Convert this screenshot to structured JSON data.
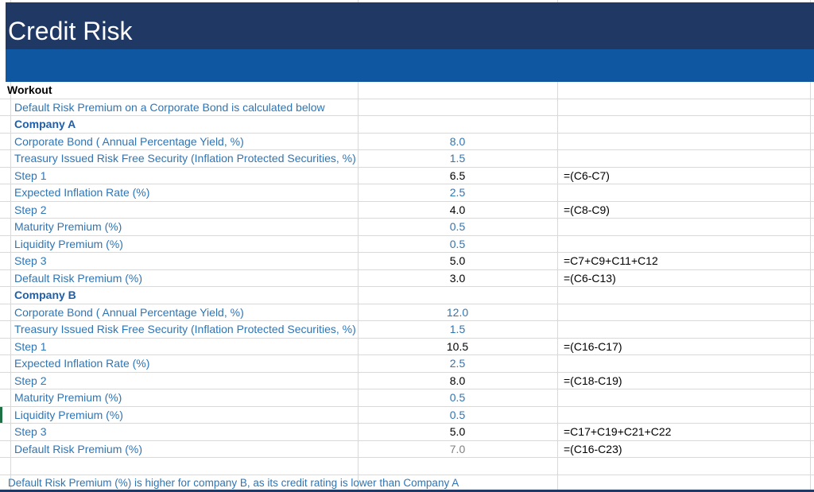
{
  "title": "Credit Risk",
  "colors": {
    "header_band": "#1F3864",
    "sub_band": "#0F57A1",
    "title_text": "#FFFFFF",
    "label_text": "#2E75B6",
    "section_text": "#1F5FA9",
    "calc_text": "#000000",
    "muted_value_text": "#808080",
    "gridline": "#D9D9D9",
    "row_marker_green": "#1E7145",
    "bottom_border": "#1F3864"
  },
  "sheet": {
    "rows": [
      {
        "label": "Workout",
        "style": "workout",
        "value": "",
        "formula": ""
      },
      {
        "label": "Default Risk Premium on a Corporate Bond is calculated below",
        "style": "label",
        "value": "",
        "formula": ""
      },
      {
        "label": "Company A",
        "style": "section",
        "value": "",
        "formula": ""
      },
      {
        "label": "Corporate Bond ( Annual Percentage Yield, %)",
        "style": "label",
        "value": "8.0",
        "value_style": "input",
        "formula": ""
      },
      {
        "label": "Treasury Issued Risk Free Security (Inflation Protected Securities, %)",
        "style": "label",
        "value": "1.5",
        "value_style": "input",
        "formula": ""
      },
      {
        "label": "Step 1",
        "style": "label",
        "value": "6.5",
        "value_style": "calc",
        "formula": "=(C6-C7)"
      },
      {
        "label": "Expected Inflation Rate (%)",
        "style": "label",
        "value": "2.5",
        "value_style": "input",
        "formula": ""
      },
      {
        "label": "Step 2",
        "style": "label",
        "value": "4.0",
        "value_style": "calc",
        "formula": "=(C8-C9)"
      },
      {
        "label": "Maturity Premium (%)",
        "style": "label",
        "value": "0.5",
        "value_style": "input",
        "formula": ""
      },
      {
        "label": "Liquidity Premium (%)",
        "style": "label",
        "value": "0.5",
        "value_style": "input",
        "formula": ""
      },
      {
        "label": "Step 3",
        "style": "label",
        "value": "5.0",
        "value_style": "calc",
        "formula": "=C7+C9+C11+C12"
      },
      {
        "label": "Default Risk Premium (%)",
        "style": "label",
        "value": "3.0",
        "value_style": "calc",
        "formula": "=(C6-C13)"
      },
      {
        "label": "Company B",
        "style": "section",
        "value": "",
        "formula": ""
      },
      {
        "label": "Corporate Bond ( Annual Percentage Yield, %)",
        "style": "label",
        "value": "12.0",
        "value_style": "input",
        "formula": ""
      },
      {
        "label": "Treasury Issued Risk Free Security (Inflation Protected Securities, %)",
        "style": "label",
        "value": "1.5",
        "value_style": "input",
        "formula": ""
      },
      {
        "label": "Step 1",
        "style": "label",
        "value": "10.5",
        "value_style": "calc",
        "formula": "=(C16-C17)"
      },
      {
        "label": "Expected Inflation Rate (%)",
        "style": "label",
        "value": "2.5",
        "value_style": "input",
        "formula": ""
      },
      {
        "label": "Step 2",
        "style": "label",
        "value": "8.0",
        "value_style": "calc",
        "formula": "=(C18-C19)"
      },
      {
        "label": "Maturity Premium (%)",
        "style": "label",
        "value": "0.5",
        "value_style": "input",
        "formula": ""
      },
      {
        "label": "Liquidity Premium (%)",
        "style": "label",
        "value": "0.5",
        "value_style": "input",
        "formula": "",
        "marker": true
      },
      {
        "label": "Step 3",
        "style": "label",
        "value": "5.0",
        "value_style": "calc",
        "formula": "=C17+C19+C21+C22"
      },
      {
        "label": "Default Risk Premium (%)",
        "style": "label",
        "value": "7.0",
        "value_style": "muted",
        "formula": "=(C16-C23)"
      },
      {
        "label": "",
        "style": "empty",
        "value": "",
        "formula": ""
      },
      {
        "label": "Default Risk Premium (%) is higher for company B, as its credit rating is lower than Company A",
        "style": "note",
        "value": "",
        "formula": ""
      }
    ]
  }
}
